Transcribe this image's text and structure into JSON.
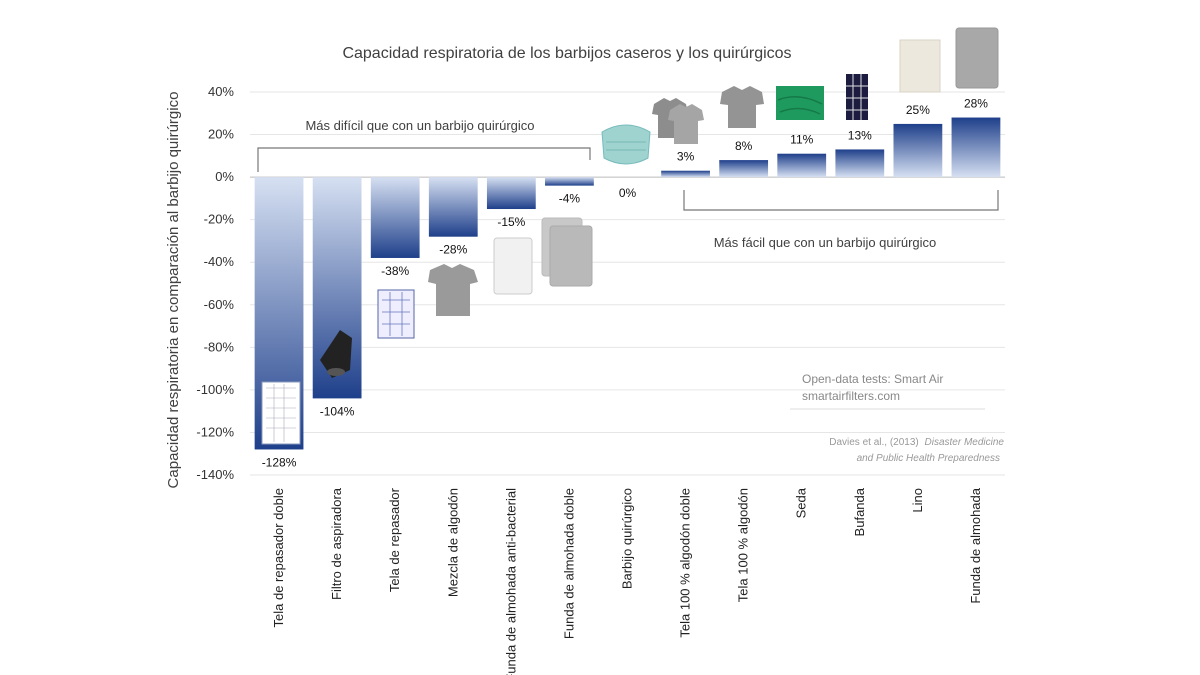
{
  "chart_data": {
    "type": "bar",
    "title": "Capacidad respiratoria de los barbijos caseros y los quirúrgicos",
    "ylabel": "Capacidad respiratoria  en comparación al barbijo quirúrgico",
    "xlabel": "",
    "ylim": [
      -140,
      40
    ],
    "yticks": [
      40,
      20,
      0,
      -20,
      -40,
      -60,
      -80,
      -100,
      -120,
      -140
    ],
    "ytick_labels": [
      "40%",
      "20%",
      "0%",
      "-20%",
      "-40%",
      "-60%",
      "-80%",
      "-100%",
      "-120%",
      "-140%"
    ],
    "grid": true,
    "categories": [
      "Tela de repasador doble",
      "Filtro de aspiradora",
      "Tela de repasador",
      "Mezcla de algodón",
      "Funda de almohada anti-bacterial",
      "Funda de almohada doble",
      "Barbijo quirúrgico",
      "Tela 100 % algodón doble",
      "Tela 100 % algodón",
      "Seda",
      "Bufanda",
      "Lino",
      "Funda de almohada"
    ],
    "values": [
      -128,
      -104,
      -38,
      -28,
      -15,
      -4,
      0,
      3,
      8,
      11,
      13,
      25,
      28
    ],
    "value_labels": [
      "-128%",
      "-104%",
      "-38%",
      "-28%",
      "-15%",
      "-4%",
      "0%",
      "3%",
      "8%",
      "11%",
      "13%",
      "25%",
      "28%"
    ],
    "annotations": {
      "harder": "Más difícil que con un barbijo quirúrgico",
      "easier": "Más fácil que con un barbijo quirúrgico"
    },
    "source": {
      "line1": "Open-data tests: Smart Air",
      "line2": "smartairfilters.com",
      "citation_author": "Davies et al., (2013)",
      "citation_journal_1": "Disaster Medicine",
      "citation_journal_2": "and Public Health Preparedness"
    },
    "colors": {
      "bar_top": "#d6e0f2",
      "bar_bottom": "#1e3f8a",
      "grid": "#e6e6e6",
      "bracket": "#777777"
    }
  }
}
